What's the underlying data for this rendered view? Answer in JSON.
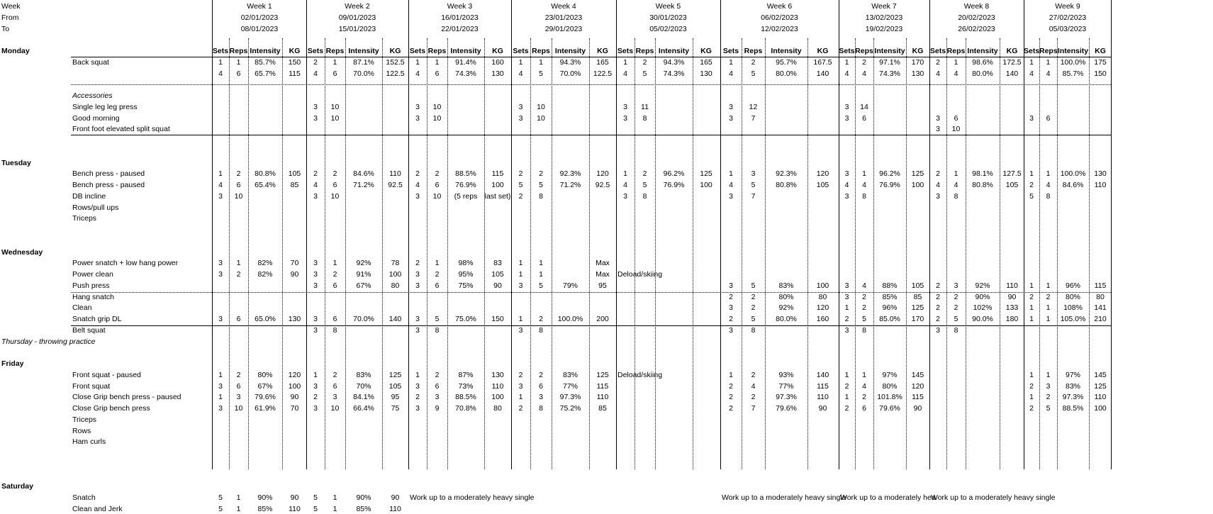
{
  "labels": {
    "week": "Week",
    "from": "From",
    "to": "To"
  },
  "col_headers": [
    "Sets",
    "Reps",
    "Intensity",
    "KG"
  ],
  "weeks": [
    {
      "label": "Week 1",
      "from": "02/01/2023",
      "to": "08/01/2023"
    },
    {
      "label": "Week 2",
      "from": "09/01/2023",
      "to": "15/01/2023"
    },
    {
      "label": "Week 3",
      "from": "16/01/2023",
      "to": "22/01/2023"
    },
    {
      "label": "Week 4",
      "from": "23/01/2023",
      "to": "29/01/2023"
    },
    {
      "label": "Week 5",
      "from": "30/01/2023",
      "to": "05/02/2023"
    },
    {
      "label": "Week 6",
      "from": "06/02/2023",
      "to": "12/02/2023"
    },
    {
      "label": "Week 7",
      "from": "13/02/2023",
      "to": "19/02/2023"
    },
    {
      "label": "Week 8",
      "from": "20/02/2023",
      "to": "26/02/2023"
    },
    {
      "label": "Week 9",
      "from": "27/02/2023",
      "to": "05/03/2023"
    }
  ],
  "days": [
    {
      "label": "Monday",
      "row": 4
    },
    {
      "label": "Tuesday",
      "row": 14
    },
    {
      "label": "Wednesday",
      "row": 22
    },
    {
      "label": "Thursday - throwing practice",
      "row": 30,
      "italic": true
    },
    {
      "label": "Friday",
      "row": 32
    },
    {
      "label": "Saturday",
      "row": 43
    }
  ],
  "exercises": [
    {
      "label": "Back squat",
      "row": 5
    },
    {
      "label": "Accessories",
      "row": 8,
      "italic": true
    },
    {
      "label": "Single leg leg press",
      "row": 9
    },
    {
      "label": "Good morning",
      "row": 10
    },
    {
      "label": "Front foot elevated split squat",
      "row": 11
    },
    {
      "label": "Bench press - paused",
      "row": 15
    },
    {
      "label": "Bench press - paused",
      "row": 16
    },
    {
      "label": "DB incline",
      "row": 17
    },
    {
      "label": "Rows/pull ups",
      "row": 18
    },
    {
      "label": "Triceps",
      "row": 19
    },
    {
      "label": "Power snatch + low hang power",
      "row": 23
    },
    {
      "label": "Power clean",
      "row": 24
    },
    {
      "label": "Push press",
      "row": 25
    },
    {
      "label": "Hang snatch",
      "row": 26
    },
    {
      "label": "Clean",
      "row": 27
    },
    {
      "label": "Snatch grip DL",
      "row": 28
    },
    {
      "label": "Belt squat",
      "row": 29
    },
    {
      "label": "Front squat -  paused",
      "row": 33
    },
    {
      "label": "Front squat",
      "row": 34
    },
    {
      "label": "Close Grip bench press - paused",
      "row": 35
    },
    {
      "label": "Close Grip bench press",
      "row": 36
    },
    {
      "label": "Triceps",
      "row": 37
    },
    {
      "label": "Rows",
      "row": 38
    },
    {
      "label": "Ham curls",
      "row": 39
    },
    {
      "label": "Snatch",
      "row": 44
    },
    {
      "label": "Clean and Jerk",
      "row": 45
    }
  ],
  "rows": [
    {
      "r": 5,
      "w": [
        [
          "1",
          "1",
          "85.7%",
          "150"
        ],
        [
          "2",
          "1",
          "87.1%",
          "152.5"
        ],
        [
          "1",
          "1",
          "91.4%",
          "160"
        ],
        [
          "1",
          "1",
          "94.3%",
          "165"
        ],
        [
          "1",
          "2",
          "94.3%",
          "165"
        ],
        [
          "1",
          "2",
          "95.7%",
          "167.5"
        ],
        [
          "1",
          "2",
          "97.1%",
          "170"
        ],
        [
          "2",
          "1",
          "98.6%",
          "172.5"
        ],
        [
          "1",
          "1",
          "100.0%",
          "175"
        ]
      ]
    },
    {
      "r": 6,
      "w": [
        [
          "4",
          "6",
          "65.7%",
          "115"
        ],
        [
          "4",
          "6",
          "70.0%",
          "122.5"
        ],
        [
          "4",
          "6",
          "74.3%",
          "130"
        ],
        [
          "4",
          "5",
          "70.0%",
          "122.5"
        ],
        [
          "4",
          "5",
          "74.3%",
          "130"
        ],
        [
          "4",
          "5",
          "80.0%",
          "140"
        ],
        [
          "4",
          "4",
          "74.3%",
          "130"
        ],
        [
          "4",
          "4",
          "80.0%",
          "140"
        ],
        [
          "4",
          "4",
          "85.7%",
          "150"
        ]
      ]
    },
    {
      "r": 9,
      "w": [
        null,
        [
          "3",
          "10",
          "",
          ""
        ],
        [
          "3",
          "10",
          "",
          ""
        ],
        [
          "3",
          "10",
          "",
          ""
        ],
        [
          "3",
          "11",
          "",
          ""
        ],
        [
          "3",
          "12",
          "",
          ""
        ],
        [
          "3",
          "14",
          "",
          ""
        ],
        null,
        null
      ]
    },
    {
      "r": 10,
      "w": [
        null,
        [
          "3",
          "10",
          "",
          ""
        ],
        [
          "3",
          "10",
          "",
          ""
        ],
        [
          "3",
          "10",
          "",
          ""
        ],
        [
          "3",
          "8",
          "",
          ""
        ],
        [
          "3",
          "7",
          "",
          ""
        ],
        [
          "3",
          "6",
          "",
          ""
        ],
        [
          "3",
          "6",
          "",
          ""
        ],
        [
          "3",
          "6",
          "",
          ""
        ]
      ]
    },
    {
      "r": 11,
      "w": [
        null,
        null,
        null,
        null,
        null,
        null,
        null,
        [
          "3",
          "10",
          "",
          ""
        ],
        null
      ]
    },
    {
      "r": 15,
      "w": [
        [
          "1",
          "2",
          "80.8%",
          "105"
        ],
        [
          "2",
          "2",
          "84.6%",
          "110"
        ],
        [
          "2",
          "2",
          "88.5%",
          "115"
        ],
        [
          "2",
          "2",
          "92.3%",
          "120"
        ],
        [
          "1",
          "2",
          "96.2%",
          "125"
        ],
        [
          "1",
          "3",
          "92.3%",
          "120"
        ],
        [
          "3",
          "1",
          "96.2%",
          "125"
        ],
        [
          "2",
          "1",
          "98.1%",
          "127.5"
        ],
        [
          "1",
          "1",
          "100.0%",
          "130"
        ]
      ]
    },
    {
      "r": 16,
      "w": [
        [
          "4",
          "6",
          "65.4%",
          "85"
        ],
        [
          "4",
          "6",
          "71.2%",
          "92.5"
        ],
        [
          "4",
          "6",
          "76.9%",
          "100"
        ],
        [
          "5",
          "5",
          "71.2%",
          "92.5"
        ],
        [
          "4",
          "5",
          "76.9%",
          "100"
        ],
        [
          "4",
          "5",
          "80.8%",
          "105"
        ],
        [
          "4",
          "4",
          "76.9%",
          "100"
        ],
        [
          "4",
          "4",
          "80.8%",
          "105"
        ],
        [
          "2",
          "4",
          "84.6%",
          "110"
        ]
      ]
    },
    {
      "r": 17,
      "w": [
        [
          "3",
          "10",
          "",
          ""
        ],
        [
          "3",
          "10",
          "",
          ""
        ],
        [
          "3",
          "10",
          "(5 reps",
          "last set)"
        ],
        [
          "2",
          "8",
          "",
          ""
        ],
        [
          "3",
          "8",
          "",
          ""
        ],
        [
          "3",
          "7",
          "",
          ""
        ],
        [
          "3",
          "8",
          "",
          ""
        ],
        [
          "3",
          "8",
          "",
          ""
        ],
        [
          "5",
          "8",
          "",
          ""
        ]
      ]
    },
    {
      "r": 23,
      "w": [
        [
          "3",
          "1",
          "82%",
          "70"
        ],
        [
          "3",
          "1",
          "92%",
          "78"
        ],
        [
          "2",
          "1",
          "98%",
          "83"
        ],
        [
          "1",
          "1",
          "",
          "Max"
        ],
        null,
        null,
        null,
        null,
        null
      ]
    },
    {
      "r": 24,
      "w": [
        [
          "3",
          "2",
          "82%",
          "90"
        ],
        [
          "3",
          "2",
          "91%",
          "100"
        ],
        [
          "3",
          "2",
          "95%",
          "105"
        ],
        [
          "1",
          "1",
          "",
          "Max"
        ],
        null,
        null,
        null,
        null,
        null
      ]
    },
    {
      "r": 25,
      "w": [
        null,
        [
          "3",
          "6",
          "67%",
          "80"
        ],
        [
          "3",
          "6",
          "75%",
          "90"
        ],
        [
          "3",
          "5",
          "79%",
          "95"
        ],
        null,
        [
          "3",
          "5",
          "83%",
          "100"
        ],
        [
          "3",
          "4",
          "88%",
          "105"
        ],
        [
          "2",
          "3",
          "92%",
          "110"
        ],
        [
          "1",
          "1",
          "96%",
          "115"
        ]
      ]
    },
    {
      "r": 26,
      "w": [
        null,
        null,
        null,
        null,
        null,
        [
          "2",
          "2",
          "80%",
          "80"
        ],
        [
          "3",
          "2",
          "85%",
          "85"
        ],
        [
          "2",
          "2",
          "90%",
          "90"
        ],
        [
          "2",
          "2",
          "80%",
          "80"
        ]
      ]
    },
    {
      "r": 27,
      "w": [
        null,
        null,
        null,
        null,
        null,
        [
          "3",
          "2",
          "92%",
          "120"
        ],
        [
          "1",
          "2",
          "96%",
          "125"
        ],
        [
          "2",
          "2",
          "102%",
          "133"
        ],
        [
          "1",
          "1",
          "108%",
          "141"
        ]
      ]
    },
    {
      "r": 28,
      "w": [
        [
          "3",
          "6",
          "65.0%",
          "130"
        ],
        [
          "3",
          "6",
          "70.0%",
          "140"
        ],
        [
          "3",
          "5",
          "75.0%",
          "150"
        ],
        [
          "1",
          "2",
          "100.0%",
          "200"
        ],
        null,
        [
          "2",
          "5",
          "80.0%",
          "160"
        ],
        [
          "2",
          "5",
          "85.0%",
          "170"
        ],
        [
          "2",
          "5",
          "90.0%",
          "180"
        ],
        [
          "1",
          "1",
          "105.0%",
          "210"
        ]
      ]
    },
    {
      "r": 29,
      "w": [
        null,
        [
          "3",
          "8",
          "",
          ""
        ],
        [
          "3",
          "8",
          "",
          ""
        ],
        [
          "3",
          "8",
          "",
          ""
        ],
        null,
        [
          "3",
          "8",
          "",
          ""
        ],
        [
          "3",
          "8",
          "",
          ""
        ],
        [
          "3",
          "8",
          "",
          ""
        ],
        null
      ]
    },
    {
      "r": 33,
      "w": [
        [
          "1",
          "2",
          "80%",
          "120"
        ],
        [
          "1",
          "2",
          "83%",
          "125"
        ],
        [
          "1",
          "2",
          "87%",
          "130"
        ],
        [
          "2",
          "2",
          "83%",
          "125"
        ],
        null,
        [
          "1",
          "2",
          "93%",
          "140"
        ],
        [
          "1",
          "1",
          "97%",
          "145"
        ],
        null,
        [
          "1",
          "1",
          "97%",
          "145"
        ]
      ]
    },
    {
      "r": 34,
      "w": [
        [
          "3",
          "6",
          "67%",
          "100"
        ],
        [
          "3",
          "6",
          "70%",
          "105"
        ],
        [
          "3",
          "6",
          "73%",
          "110"
        ],
        [
          "3",
          "6",
          "77%",
          "115"
        ],
        null,
        [
          "2",
          "4",
          "77%",
          "115"
        ],
        [
          "2",
          "4",
          "80%",
          "120"
        ],
        null,
        [
          "2",
          "3",
          "83%",
          "125"
        ]
      ]
    },
    {
      "r": 35,
      "w": [
        [
          "1",
          "3",
          "79.6%",
          "90"
        ],
        [
          "2",
          "3",
          "84.1%",
          "95"
        ],
        [
          "2",
          "3",
          "88.5%",
          "100"
        ],
        [
          "1",
          "3",
          "97.3%",
          "110"
        ],
        null,
        [
          "2",
          "2",
          "97.3%",
          "110"
        ],
        [
          "1",
          "2",
          "101.8%",
          "115"
        ],
        null,
        [
          "1",
          "2",
          "97.3%",
          "110"
        ]
      ]
    },
    {
      "r": 36,
      "w": [
        [
          "3",
          "10",
          "61.9%",
          "70"
        ],
        [
          "3",
          "10",
          "66.4%",
          "75"
        ],
        [
          "3",
          "9",
          "70.8%",
          "80"
        ],
        [
          "2",
          "8",
          "75.2%",
          "85"
        ],
        null,
        [
          "2",
          "7",
          "79.6%",
          "90"
        ],
        [
          "2",
          "6",
          "79.6%",
          "90"
        ],
        null,
        [
          "2",
          "5",
          "88.5%",
          "100"
        ]
      ]
    },
    {
      "r": 44,
      "w": [
        [
          "5",
          "1",
          "90%",
          "90"
        ],
        [
          "5",
          "1",
          "90%",
          "90"
        ],
        null,
        null,
        null,
        null,
        null,
        null,
        null
      ]
    },
    {
      "r": 45,
      "w": [
        [
          "5",
          "1",
          "85%",
          "110"
        ],
        [
          "5",
          "1",
          "85%",
          "110"
        ],
        null,
        null,
        null,
        null,
        null,
        null,
        null
      ]
    }
  ],
  "notes": [
    {
      "text": "Deload/skiing",
      "row": 24,
      "week": 4
    },
    {
      "text": "Deload/skiing",
      "row": 33,
      "week": 4
    },
    {
      "text": "Work up to a moderately heavy single",
      "row": 44,
      "week": 2
    },
    {
      "text": "Work up to a moderately heavy single",
      "row": 44,
      "week": 5
    },
    {
      "text": "Work up to a moderately hea",
      "row": 44,
      "week": 6
    },
    {
      "text": "Work up to a moderately heavy single",
      "row": 44,
      "week": 7
    }
  ]
}
